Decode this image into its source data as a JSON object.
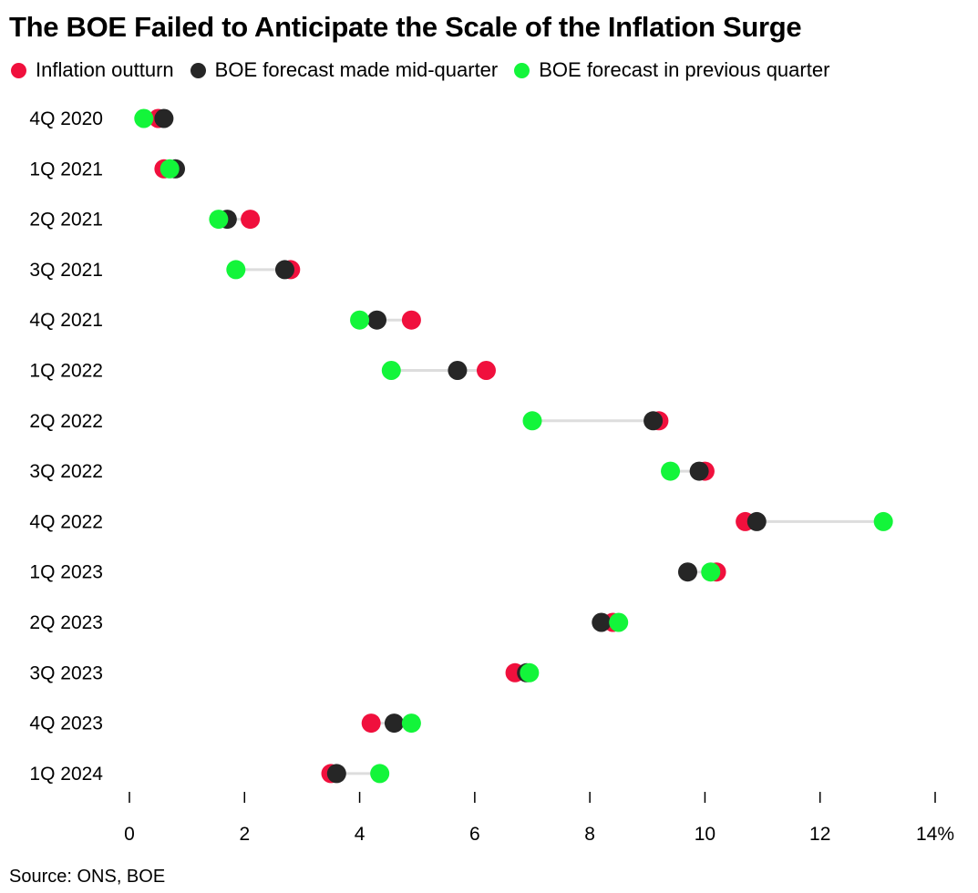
{
  "title": "The BOE Failed to Anticipate the Scale of the Inflation Surge",
  "source": "Source: ONS, BOE",
  "legend": [
    {
      "label": "Inflation outturn",
      "color": "#f0103d"
    },
    {
      "label": "BOE forecast made mid-quarter",
      "color": "#262626"
    },
    {
      "label": "BOE forecast in previous quarter",
      "color": "#13f53a"
    }
  ],
  "chart_data": {
    "type": "scatter",
    "subtype": "dot-plot",
    "categories": [
      "4Q 2020",
      "1Q 2021",
      "2Q 2021",
      "3Q 2021",
      "4Q 2021",
      "1Q 2022",
      "2Q 2022",
      "3Q 2022",
      "4Q 2022",
      "1Q 2023",
      "2Q 2023",
      "3Q 2023",
      "4Q 2023",
      "1Q 2024"
    ],
    "series": [
      {
        "name": "Inflation outturn",
        "color": "#f0103d",
        "values": [
          0.5,
          0.6,
          2.1,
          2.8,
          4.9,
          6.2,
          9.2,
          10.0,
          10.7,
          10.2,
          8.4,
          6.7,
          4.2,
          3.5
        ]
      },
      {
        "name": "BOE forecast made mid-quarter",
        "color": "#262626",
        "values": [
          0.6,
          0.8,
          1.7,
          2.7,
          4.3,
          5.7,
          9.1,
          9.9,
          10.9,
          9.7,
          8.2,
          6.9,
          4.6,
          3.6
        ]
      },
      {
        "name": "BOE forecast in previous quarter",
        "color": "#13f53a",
        "values": [
          0.25,
          0.7,
          1.55,
          1.85,
          4.0,
          4.55,
          7.0,
          9.4,
          13.1,
          10.1,
          8.5,
          6.95,
          4.9,
          4.35
        ]
      }
    ],
    "xlim": [
      0,
      14
    ],
    "xticks": [
      0,
      2,
      4,
      6,
      8,
      10,
      12,
      14
    ],
    "xtick_labels": [
      "0",
      "2",
      "4",
      "6",
      "8",
      "10",
      "12",
      "14%"
    ],
    "connector_color": "#dddddd",
    "grid": false
  }
}
